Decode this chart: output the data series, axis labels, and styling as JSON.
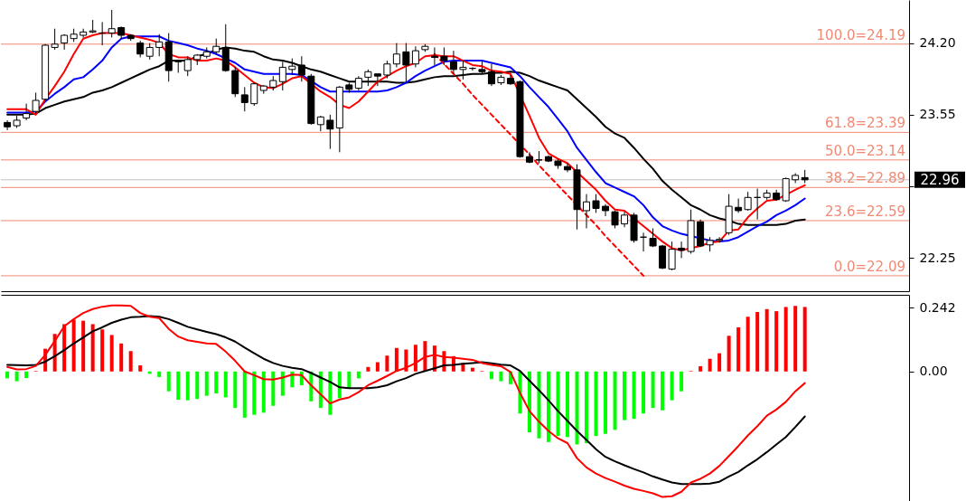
{
  "chart_data": [
    {
      "type": "candlestick",
      "categories": [
        null,
        null,
        null,
        null,
        null,
        null,
        null,
        null,
        null,
        null,
        null,
        null,
        null,
        null,
        null,
        null,
        null,
        null,
        null,
        null,
        null,
        null,
        null,
        null,
        null,
        null,
        null,
        null,
        null,
        null,
        null,
        null,
        null,
        null,
        null,
        null,
        null,
        null,
        null,
        null,
        null,
        null,
        null,
        null,
        null,
        null,
        null,
        null,
        null,
        null,
        null,
        null,
        null,
        null,
        null,
        null,
        null,
        null,
        null,
        null,
        null,
        null,
        null,
        null,
        null,
        null,
        null,
        null,
        null,
        null,
        null,
        null,
        null,
        null,
        null,
        null,
        null,
        null,
        null,
        null,
        null,
        null,
        null,
        null,
        null
      ],
      "ohlc": [
        [
          23.48,
          23.5,
          23.41,
          23.44
        ],
        [
          23.45,
          23.54,
          23.43,
          23.5
        ],
        [
          23.52,
          23.65,
          23.5,
          23.56
        ],
        [
          23.58,
          23.75,
          23.56,
          23.68
        ],
        [
          23.69,
          24.19,
          23.68,
          24.18
        ],
        [
          24.16,
          24.33,
          24.14,
          24.19
        ],
        [
          24.2,
          24.28,
          24.14,
          24.27
        ],
        [
          24.24,
          24.33,
          24.21,
          24.28
        ],
        [
          24.27,
          24.33,
          24.25,
          24.3
        ],
        [
          24.3,
          24.41,
          24.29,
          24.31
        ],
        [
          24.29,
          24.39,
          24.18,
          24.29
        ],
        [
          24.29,
          24.5,
          24.25,
          24.33
        ],
        [
          24.34,
          24.35,
          24.24,
          24.27
        ],
        [
          24.27,
          24.28,
          24.22,
          24.24
        ],
        [
          24.2,
          24.22,
          24.07,
          24.1
        ],
        [
          24.08,
          24.2,
          24.05,
          24.16
        ],
        [
          24.16,
          24.28,
          24.08,
          24.21
        ],
        [
          24.21,
          24.29,
          23.85,
          23.95
        ],
        [
          24.04,
          24.05,
          23.93,
          24.03
        ],
        [
          23.95,
          24.08,
          23.9,
          24.05
        ],
        [
          24.05,
          24.1,
          24.0,
          24.09
        ],
        [
          24.08,
          24.16,
          24.06,
          24.12
        ],
        [
          24.12,
          24.24,
          24.1,
          24.17
        ],
        [
          24.16,
          24.37,
          23.94,
          23.95
        ],
        [
          23.95,
          23.98,
          23.71,
          23.74
        ],
        [
          23.73,
          23.8,
          23.58,
          23.66
        ],
        [
          23.65,
          23.84,
          23.63,
          23.83
        ],
        [
          23.77,
          23.82,
          23.74,
          23.81
        ],
        [
          23.8,
          23.9,
          23.77,
          23.86
        ],
        [
          23.85,
          24.03,
          23.77,
          23.98
        ],
        [
          23.96,
          24.06,
          23.91,
          23.99
        ],
        [
          24.0,
          24.08,
          23.85,
          23.91
        ],
        [
          23.9,
          23.92,
          23.46,
          23.47
        ],
        [
          23.46,
          23.54,
          23.4,
          23.53
        ],
        [
          23.5,
          23.55,
          23.24,
          23.42
        ],
        [
          23.43,
          23.81,
          23.21,
          23.8
        ],
        [
          23.82,
          23.84,
          23.75,
          23.78
        ],
        [
          23.79,
          23.9,
          23.77,
          23.88
        ],
        [
          23.89,
          23.96,
          23.81,
          23.94
        ],
        [
          23.92,
          23.92,
          23.81,
          23.9
        ],
        [
          23.91,
          24.04,
          23.88,
          24.01
        ],
        [
          24.01,
          24.2,
          23.98,
          24.1
        ],
        [
          24.12,
          24.2,
          23.84,
          24.0
        ],
        [
          24.01,
          24.17,
          23.98,
          24.13
        ],
        [
          24.14,
          24.19,
          24.12,
          24.17
        ],
        [
          24.08,
          24.16,
          24.0,
          24.07
        ],
        [
          24.08,
          24.16,
          24.0,
          24.04
        ],
        [
          24.03,
          24.13,
          23.92,
          23.96
        ],
        [
          23.96,
          24.04,
          23.87,
          23.98
        ],
        [
          23.97,
          23.98,
          23.95,
          23.97
        ],
        [
          23.96,
          24.04,
          23.92,
          23.94
        ],
        [
          23.94,
          24.01,
          23.81,
          23.83
        ],
        [
          23.84,
          23.91,
          23.82,
          23.89
        ],
        [
          23.88,
          23.91,
          23.82,
          23.83
        ],
        [
          23.85,
          23.86,
          23.16,
          23.17
        ],
        [
          23.17,
          23.21,
          23.11,
          23.12
        ],
        [
          23.14,
          23.22,
          23.11,
          23.14
        ],
        [
          23.17,
          23.18,
          23.12,
          23.13
        ],
        [
          23.13,
          23.15,
          23.06,
          23.09
        ],
        [
          23.08,
          23.11,
          23.03,
          23.05
        ],
        [
          23.05,
          23.1,
          22.51,
          22.69
        ],
        [
          22.68,
          22.83,
          22.52,
          22.76
        ],
        [
          22.77,
          22.83,
          22.66,
          22.7
        ],
        [
          22.72,
          22.74,
          22.63,
          22.68
        ],
        [
          22.67,
          22.68,
          22.52,
          22.55
        ],
        [
          22.56,
          22.67,
          22.53,
          22.64
        ],
        [
          22.64,
          22.66,
          22.39,
          22.41
        ],
        [
          22.44,
          22.48,
          22.31,
          22.44
        ],
        [
          22.43,
          22.52,
          22.35,
          22.36
        ],
        [
          22.36,
          22.37,
          22.15,
          22.16
        ],
        [
          22.15,
          22.4,
          22.14,
          22.33
        ],
        [
          22.34,
          22.4,
          22.25,
          22.32
        ],
        [
          22.31,
          22.69,
          22.29,
          22.59
        ],
        [
          22.58,
          22.6,
          22.35,
          22.36
        ],
        [
          22.37,
          22.44,
          22.31,
          22.41
        ],
        [
          22.41,
          22.44,
          22.39,
          22.42
        ],
        [
          22.48,
          22.83,
          22.46,
          22.72
        ],
        [
          22.71,
          22.79,
          22.66,
          22.68
        ],
        [
          22.69,
          22.85,
          22.68,
          22.8
        ],
        [
          22.8,
          22.88,
          22.6,
          22.8
        ],
        [
          22.8,
          22.87,
          22.78,
          22.84
        ],
        [
          22.84,
          22.87,
          22.77,
          22.78
        ],
        [
          22.77,
          22.98,
          22.76,
          22.97
        ],
        [
          22.96,
          23.02,
          22.93,
          23.0
        ],
        [
          22.98,
          23.05,
          22.93,
          22.96
        ]
      ],
      "series": [
        {
          "type": "line",
          "color": "#000000",
          "values": [
            23.55,
            23.55,
            23.55,
            23.56,
            23.61,
            23.64,
            23.67,
            23.69,
            23.71,
            23.75,
            23.77,
            23.8,
            23.84,
            23.88,
            23.92,
            23.96,
            23.99,
            24.04,
            24.04,
            24.04,
            24.08,
            24.1,
            24.14,
            24.16,
            24.15,
            24.13,
            24.12,
            24.08,
            24.05,
            24.04,
            24.02,
            23.99,
            23.96,
            23.94,
            23.91,
            23.88,
            23.85,
            23.85,
            23.85,
            23.85,
            23.85,
            23.84,
            23.84,
            23.85,
            23.87,
            23.89,
            23.9,
            23.9,
            23.91,
            23.92,
            23.92,
            23.93,
            23.93,
            23.94,
            23.93,
            23.9,
            23.86,
            23.83,
            23.8,
            23.77,
            23.69,
            23.61,
            23.53,
            23.44,
            23.38,
            23.34,
            23.25,
            23.15,
            23.06,
            22.95,
            22.87,
            22.8,
            22.73,
            22.69,
            22.64,
            22.61,
            22.59,
            22.56,
            22.55,
            22.55,
            22.55,
            22.55,
            22.56,
            22.59,
            22.6
          ]
        },
        {
          "type": "line",
          "color": "#0000ff",
          "values": [
            23.57,
            23.57,
            23.57,
            23.58,
            23.67,
            23.74,
            23.8,
            23.87,
            23.89,
            23.96,
            24.04,
            24.16,
            24.24,
            24.26,
            24.26,
            24.26,
            24.26,
            24.22,
            24.2,
            24.18,
            24.15,
            24.13,
            24.1,
            24.06,
            24.02,
            23.96,
            23.94,
            23.92,
            23.92,
            23.92,
            23.92,
            23.91,
            null,
            23.8,
            23.76,
            null,
            23.76,
            23.76,
            23.76,
            23.76,
            23.77,
            23.8,
            23.84,
            23.9,
            23.95,
            23.99,
            24.03,
            24.04,
            24.04,
            24.04,
            24.04,
            24.02,
            24.0,
            23.98,
            23.9,
            23.8,
            23.71,
            23.62,
            23.51,
            23.4,
            23.25,
            23.14,
            23.03,
            22.93,
            22.89,
            22.85,
            22.81,
            22.73,
            22.62,
            22.54,
            22.5,
            22.47,
            22.45,
            22.43,
            22.41,
            22.4,
            22.41,
            22.44,
            22.49,
            22.54,
            22.58,
            22.64,
            22.68,
            22.73,
            22.79
          ]
        },
        {
          "type": "line",
          "color": "#ff0000",
          "values": [
            23.6,
            23.6,
            23.6,
            23.55,
            23.69,
            23.81,
            23.94,
            24.1,
            24.24,
            24.27,
            24.29,
            24.29,
            24.29,
            24.27,
            24.25,
            24.23,
            24.2,
            24.1,
            24.07,
            24.07,
            24.04,
            24.04,
            24.06,
            24.04,
            23.98,
            23.91,
            23.84,
            23.8,
            23.79,
            23.83,
            23.88,
            23.9,
            null,
            23.76,
            23.71,
            23.64,
            23.61,
            23.67,
            23.76,
            23.85,
            23.9,
            23.95,
            23.99,
            24.02,
            24.08,
            24.09,
            24.08,
            24.08,
            24.04,
            24.0,
            23.99,
            23.95,
            23.94,
            23.92,
            null,
            23.54,
            23.34,
            23.2,
            23.15,
            23.11,
            23.03,
            22.95,
            22.87,
            22.77,
            22.69,
            22.68,
            null,
            22.54,
            22.47,
            22.4,
            22.34,
            22.32,
            null,
            22.36,
            22.39,
            22.4,
            22.5,
            22.51,
            22.62,
            22.7,
            22.77,
            22.78,
            null,
            22.87,
            22.91
          ]
        },
        {
          "type": "line",
          "color": "#ff0000",
          "line_style": "dashed",
          "values": [
            null,
            null,
            null,
            null,
            null,
            null,
            null,
            null,
            null,
            null,
            null,
            null,
            null,
            null,
            null,
            null,
            null,
            null,
            null,
            null,
            null,
            null,
            null,
            null,
            null,
            null,
            null,
            null,
            null,
            null,
            null,
            null,
            null,
            null,
            null,
            null,
            null,
            null,
            null,
            null,
            null,
            null,
            null,
            null,
            null,
            24.1,
            24.01,
            23.92,
            23.83,
            23.73,
            23.64,
            23.55,
            23.46,
            23.37,
            null,
            23.19,
            23.09,
            23.0,
            22.91,
            22.82,
            null,
            22.64,
            22.55,
            22.45,
            22.36,
            22.27,
            22.18,
            22.09,
            null,
            null,
            null,
            null,
            null,
            null,
            null,
            null,
            null,
            null,
            null,
            null,
            null,
            null,
            null,
            null,
            null
          ]
        }
      ],
      "ref_lines": [
        {
          "axis": "y",
          "value": 22.96,
          "color": "#c0c0c0"
        },
        {
          "axis": "y",
          "value": 24.19,
          "label": "100.0=24.19",
          "color": "#f08a75"
        },
        {
          "axis": "y",
          "value": 23.39,
          "label": "61.8=23.39",
          "color": "#f08a75"
        },
        {
          "axis": "y",
          "value": 23.14,
          "label": "50.0=23.14",
          "color": "#f08a75"
        },
        {
          "axis": "y",
          "value": 22.89,
          "label": "38.2=22.89",
          "color": "#f08a75"
        },
        {
          "axis": "y",
          "value": 22.59,
          "label": "23.6=22.59",
          "color": "#f08a75"
        },
        {
          "axis": "y",
          "value": 22.09,
          "label": "0.0=22.09",
          "color": "#f08a75"
        }
      ],
      "annotations": [
        "22.96"
      ],
      "ylim": [
        21.95,
        24.59
      ],
      "yticks": [
        {
          "value": 24.2,
          "label": "24.20"
        },
        23.55,
        {
          "value": 22.9,
          "label": null
        },
        22.25
      ],
      "tick_labels": "y"
    },
    {
      "type": "bar",
      "categories": [
        null,
        null,
        null,
        null,
        null,
        null,
        null,
        null,
        null,
        null,
        null,
        null,
        null,
        null,
        null,
        null,
        null,
        null,
        null,
        null,
        null,
        null,
        null,
        null,
        null,
        null,
        null,
        null,
        null,
        null,
        null,
        null,
        null,
        null,
        null,
        null,
        null,
        null,
        null,
        null,
        null,
        null,
        null,
        null,
        null,
        null,
        null,
        null,
        null,
        null,
        null,
        null,
        null,
        null,
        null,
        null,
        null,
        null,
        null,
        null,
        null,
        null,
        null,
        null,
        null,
        null,
        null,
        null,
        null,
        null,
        null,
        null,
        null,
        null,
        null,
        null,
        null,
        null,
        null,
        null,
        null,
        null,
        null,
        null,
        null
      ],
      "series": [
        {
          "type": "bar",
          "values": [
            -0.026,
            -0.037,
            -0.025,
            0.002,
            0.086,
            0.142,
            0.179,
            0.196,
            0.192,
            0.179,
            0.159,
            0.138,
            0.106,
            0.077,
            0.023,
            -0.009,
            -0.021,
            -0.075,
            -0.107,
            -0.109,
            -0.104,
            -0.092,
            -0.083,
            -0.098,
            -0.138,
            -0.175,
            -0.164,
            -0.156,
            -0.13,
            -0.092,
            -0.06,
            -0.052,
            -0.113,
            -0.138,
            -0.164,
            -0.101,
            -0.063,
            -0.026,
            0.017,
            0.035,
            0.06,
            0.089,
            0.083,
            0.101,
            0.115,
            0.098,
            0.077,
            0.058,
            0.032,
            0.014,
            0.002,
            -0.029,
            -0.037,
            -0.048,
            -0.159,
            -0.23,
            -0.253,
            -0.267,
            -0.244,
            -0.248,
            -0.276,
            -0.271,
            -0.244,
            -0.236,
            -0.221,
            -0.184,
            -0.179,
            -0.159,
            -0.138,
            -0.147,
            -0.109,
            -0.075,
            0.002,
            0.02,
            0.048,
            0.069,
            0.135,
            0.167,
            0.207,
            0.225,
            0.236,
            0.228,
            0.244,
            0.248,
            0.244
          ],
          "colors": [
            "#00ff00",
            "#00ff00",
            "#00ff00",
            "#ff0000",
            "#ff0000",
            "#ff0000",
            "#ff0000",
            "#ff0000",
            "#ff0000",
            "#ff0000",
            "#ff0000",
            "#ff0000",
            "#ff0000",
            "#ff0000",
            "#ff0000",
            "#00ff00",
            "#00ff00",
            "#00ff00",
            "#00ff00",
            "#00ff00",
            "#00ff00",
            "#00ff00",
            "#00ff00",
            "#00ff00",
            "#00ff00",
            "#00ff00",
            "#00ff00",
            "#00ff00",
            "#00ff00",
            "#00ff00",
            "#00ff00",
            "#00ff00",
            "#00ff00",
            "#00ff00",
            "#00ff00",
            "#00ff00",
            "#00ff00",
            "#00ff00",
            "#ff0000",
            "#ff0000",
            "#ff0000",
            "#ff0000",
            "#ff0000",
            "#ff0000",
            "#ff0000",
            "#ff0000",
            "#ff0000",
            "#ff0000",
            "#ff0000",
            "#ff0000",
            "#ff0000",
            "#00ff00",
            "#00ff00",
            "#00ff00",
            "#00ff00",
            "#00ff00",
            "#00ff00",
            "#00ff00",
            "#00ff00",
            "#00ff00",
            "#00ff00",
            "#00ff00",
            "#00ff00",
            "#00ff00",
            "#00ff00",
            "#00ff00",
            "#00ff00",
            "#00ff00",
            "#00ff00",
            "#00ff00",
            "#00ff00",
            "#00ff00",
            "#ff0000",
            "#ff0000",
            "#ff0000",
            "#ff0000",
            "#ff0000",
            "#ff0000",
            "#ff0000",
            "#ff0000",
            "#ff0000",
            "#ff0000",
            "#ff0000",
            "#ff0000",
            "#ff0000"
          ]
        },
        {
          "type": "line",
          "color": "#000000",
          "values": [
            0.025,
            0.024,
            0.023,
            0.025,
            0.037,
            0.058,
            0.081,
            0.106,
            0.129,
            0.152,
            0.167,
            0.184,
            0.196,
            0.205,
            0.207,
            0.21,
            0.207,
            0.198,
            0.184,
            0.169,
            0.159,
            0.15,
            0.141,
            0.129,
            0.113,
            0.09,
            0.069,
            0.048,
            0.032,
            0.021,
            0.014,
            0.009,
            -0.006,
            -0.023,
            -0.04,
            -0.06,
            -0.063,
            -0.063,
            -0.063,
            -0.06,
            -0.052,
            -0.037,
            -0.025,
            -0.009,
            0.002,
            0.012,
            0.023,
            0.025,
            0.029,
            0.032,
            0.035,
            0.031,
            0.026,
            0.023,
            0.002,
            -0.035,
            -0.071,
            -0.109,
            -0.15,
            -0.187,
            -0.225,
            -0.259,
            -0.294,
            -0.323,
            -0.34,
            -0.355,
            -0.369,
            -0.382,
            -0.397,
            -0.409,
            -0.42,
            -0.426,
            -0.426,
            -0.426,
            -0.424,
            -0.417,
            -0.397,
            -0.38,
            -0.355,
            -0.332,
            -0.305,
            -0.276,
            -0.248,
            -0.21,
            -0.17
          ]
        },
        {
          "type": "line",
          "color": "#ff0000",
          "values": [
            0.017,
            0.008,
            0.009,
            0.021,
            0.063,
            0.115,
            0.171,
            0.198,
            0.221,
            0.236,
            0.245,
            0.25,
            0.25,
            0.248,
            0.221,
            0.207,
            0.202,
            0.161,
            0.132,
            0.118,
            0.112,
            0.106,
            0.104,
            0.075,
            0.04,
            0,
            -0.014,
            -0.029,
            -0.031,
            -0.023,
            -0.012,
            -0.014,
            -0.052,
            -0.086,
            -0.121,
            -0.106,
            -0.098,
            -0.078,
            -0.052,
            -0.035,
            -0.017,
            0.002,
            0.014,
            0.032,
            0.055,
            0.063,
            0.055,
            0.052,
            0.048,
            0.044,
            0.032,
            0.025,
            0.02,
            -0.002,
            -0.081,
            -0.15,
            -0.19,
            -0.225,
            -0.253,
            -0.271,
            -0.328,
            -0.363,
            -0.386,
            -0.403,
            -0.417,
            -0.432,
            -0.444,
            -0.452,
            -0.461,
            -0.475,
            -0.472,
            -0.455,
            -0.42,
            -0.406,
            -0.386,
            -0.357,
            -0.32,
            -0.282,
            -0.242,
            -0.207,
            -0.167,
            -0.144,
            -0.115,
            -0.075,
            -0.044
          ]
        }
      ],
      "ylim": [
        -0.49,
        0.29
      ],
      "yticks": [
        0.242,
        {
          "value": 0,
          "label": "0.00"
        }
      ],
      "tick_labels": "y"
    }
  ]
}
